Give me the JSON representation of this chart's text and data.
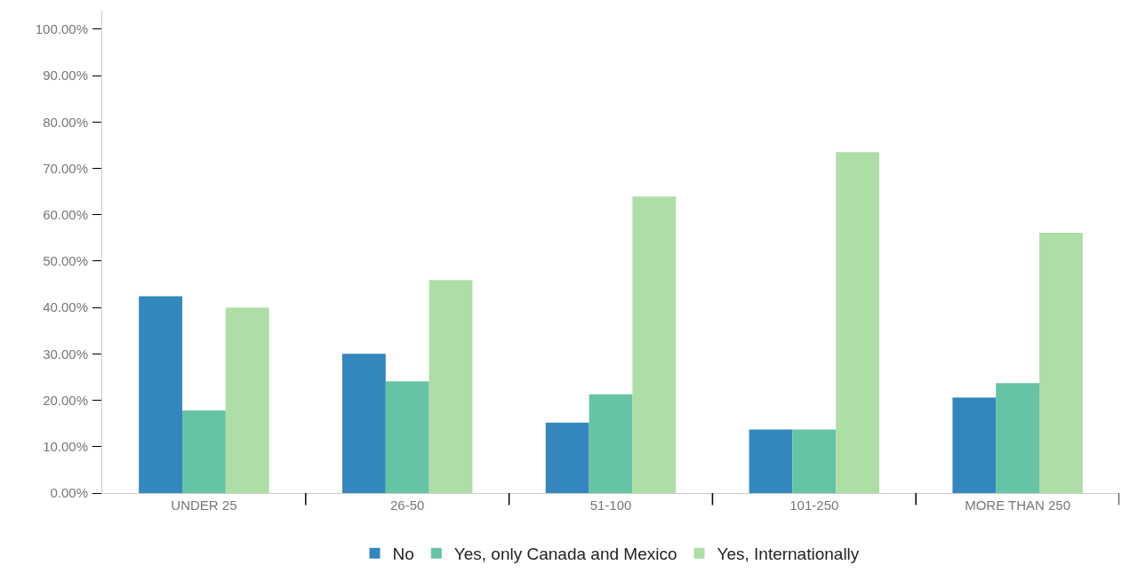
{
  "chart_data": {
    "type": "bar",
    "categories": [
      "UNDER 25",
      "26-50",
      "51-100",
      "101-250",
      "MORE THAN 250"
    ],
    "series": [
      {
        "name": "No",
        "color": "#3387bc",
        "values": [
          42.4,
          30.0,
          15.2,
          13.7,
          20.6
        ]
      },
      {
        "name": "Yes, only Canada and Mexico",
        "color": "#67c3a5",
        "values": [
          17.8,
          24.1,
          21.3,
          13.7,
          23.7
        ]
      },
      {
        "name": "Yes, Internationally",
        "color": "#addea5",
        "values": [
          40.0,
          45.9,
          63.9,
          73.5,
          56.1
        ]
      }
    ],
    "ylim": [
      0,
      104
    ],
    "yticks": [
      {
        "value": 0,
        "label": "0.00%"
      },
      {
        "value": 10,
        "label": "10.00%"
      },
      {
        "value": 20,
        "label": "20.00%"
      },
      {
        "value": 30,
        "label": "30.00%"
      },
      {
        "value": 40,
        "label": "40.00%"
      },
      {
        "value": 50,
        "label": "50.00%"
      },
      {
        "value": 60,
        "label": "60.00%"
      },
      {
        "value": 70,
        "label": "70.00%"
      },
      {
        "value": 80,
        "label": "80.00%"
      },
      {
        "value": 90,
        "label": "90.00%"
      },
      {
        "value": 100,
        "label": "100.00%"
      }
    ],
    "legend": "bottom"
  }
}
